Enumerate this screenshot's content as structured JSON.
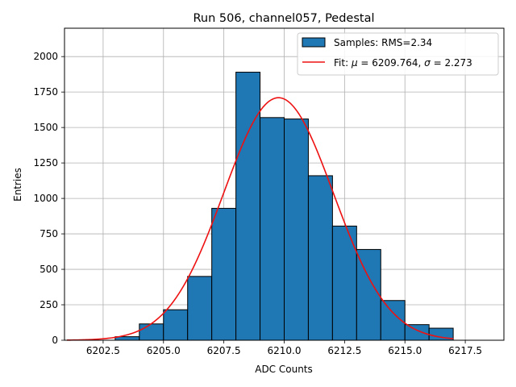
{
  "chart_data": {
    "type": "bar",
    "title": "Run 506, channel057, Pedestal",
    "xlabel": "ADC Counts",
    "ylabel": "Entries",
    "xlim": [
      6200.9,
      6219.1
    ],
    "ylim": [
      0,
      2200
    ],
    "x_ticks": [
      6202.5,
      6205.0,
      6207.5,
      6210.0,
      6212.5,
      6215.0,
      6217.5
    ],
    "x_tick_labels": [
      "6202.5",
      "6205.0",
      "6207.5",
      "6210.0",
      "6212.5",
      "6215.0",
      "6217.5"
    ],
    "y_ticks": [
      0,
      250,
      500,
      750,
      1000,
      1250,
      1500,
      1750,
      2000
    ],
    "y_tick_labels": [
      "0",
      "250",
      "500",
      "750",
      "1000",
      "1250",
      "1500",
      "1750",
      "2000"
    ],
    "grid": true,
    "legend_position": "top-right",
    "histogram": {
      "name": "Samples: RMS=2.34",
      "bin_edges": [
        6203,
        6204,
        6205,
        6206,
        6207,
        6208,
        6209,
        6210,
        6211,
        6212,
        6213,
        6214,
        6215,
        6216,
        6217
      ],
      "counts": [
        25,
        115,
        215,
        450,
        930,
        1890,
        1570,
        1560,
        1160,
        805,
        640,
        280,
        110,
        85
      ],
      "color": "#1f77b4",
      "edge_color": "#000000"
    },
    "fit": {
      "name_prefix": "Fit: ",
      "mu_symbol": "μ",
      "mu_value": " = 6209.764, ",
      "sigma_symbol": "σ",
      "sigma_value": " = 2.273",
      "mu": 6209.764,
      "sigma": 2.273,
      "amplitude": 1710,
      "x_range": [
        6201,
        6217
      ],
      "color": "#ee1111"
    }
  }
}
